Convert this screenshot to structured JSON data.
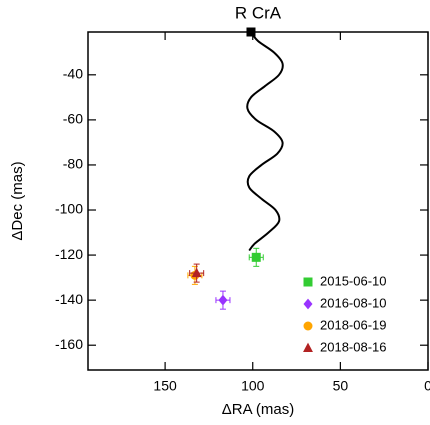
{
  "chart_data": {
    "type": "scatter",
    "title": "R CrA",
    "x_label": "ΔRA (mas)",
    "y_label": "ΔDec (mas)",
    "xlim": [
      194,
      0
    ],
    "ylim": [
      -171,
      -21
    ],
    "xticks": [
      150,
      100,
      50,
      0
    ],
    "yticks": [
      -40,
      -60,
      -80,
      -100,
      -120,
      -140,
      -160
    ],
    "track": {
      "color": "#000000",
      "x": [
        101,
        97,
        88,
        83,
        85,
        93,
        101,
        103,
        98,
        88,
        83,
        86,
        95,
        102,
        102,
        95,
        87,
        85,
        91,
        99,
        102
      ],
      "y": [
        -21,
        -25,
        -30,
        -35,
        -40,
        -45,
        -50,
        -55,
        -60,
        -65,
        -70,
        -75,
        -80,
        -85,
        -90,
        -95,
        -100,
        -105,
        -110,
        -115,
        -118
      ]
    },
    "series": [
      {
        "name": "2015-06-10",
        "color": "#33cc33",
        "marker": "square",
        "x": [
          98
        ],
        "values": [
          -121
        ],
        "xerr": [
          4
        ],
        "yerr": [
          4
        ]
      },
      {
        "name": "2016-08-10",
        "color": "#9933ff",
        "marker": "diamond",
        "x": [
          117
        ],
        "values": [
          -140
        ],
        "xerr": [
          4
        ],
        "yerr": [
          4
        ]
      },
      {
        "name": "2018-06-19",
        "color": "#ffa500",
        "marker": "circle",
        "x": [
          133
        ],
        "values": [
          -129
        ],
        "xerr": [
          4
        ],
        "yerr": [
          4
        ]
      },
      {
        "name": "2018-08-16",
        "color": "#b22222",
        "marker": "triangle",
        "x": [
          132
        ],
        "values": [
          -128
        ],
        "xerr": [
          4
        ],
        "yerr": [
          4
        ]
      }
    ],
    "legend": "lower right"
  }
}
